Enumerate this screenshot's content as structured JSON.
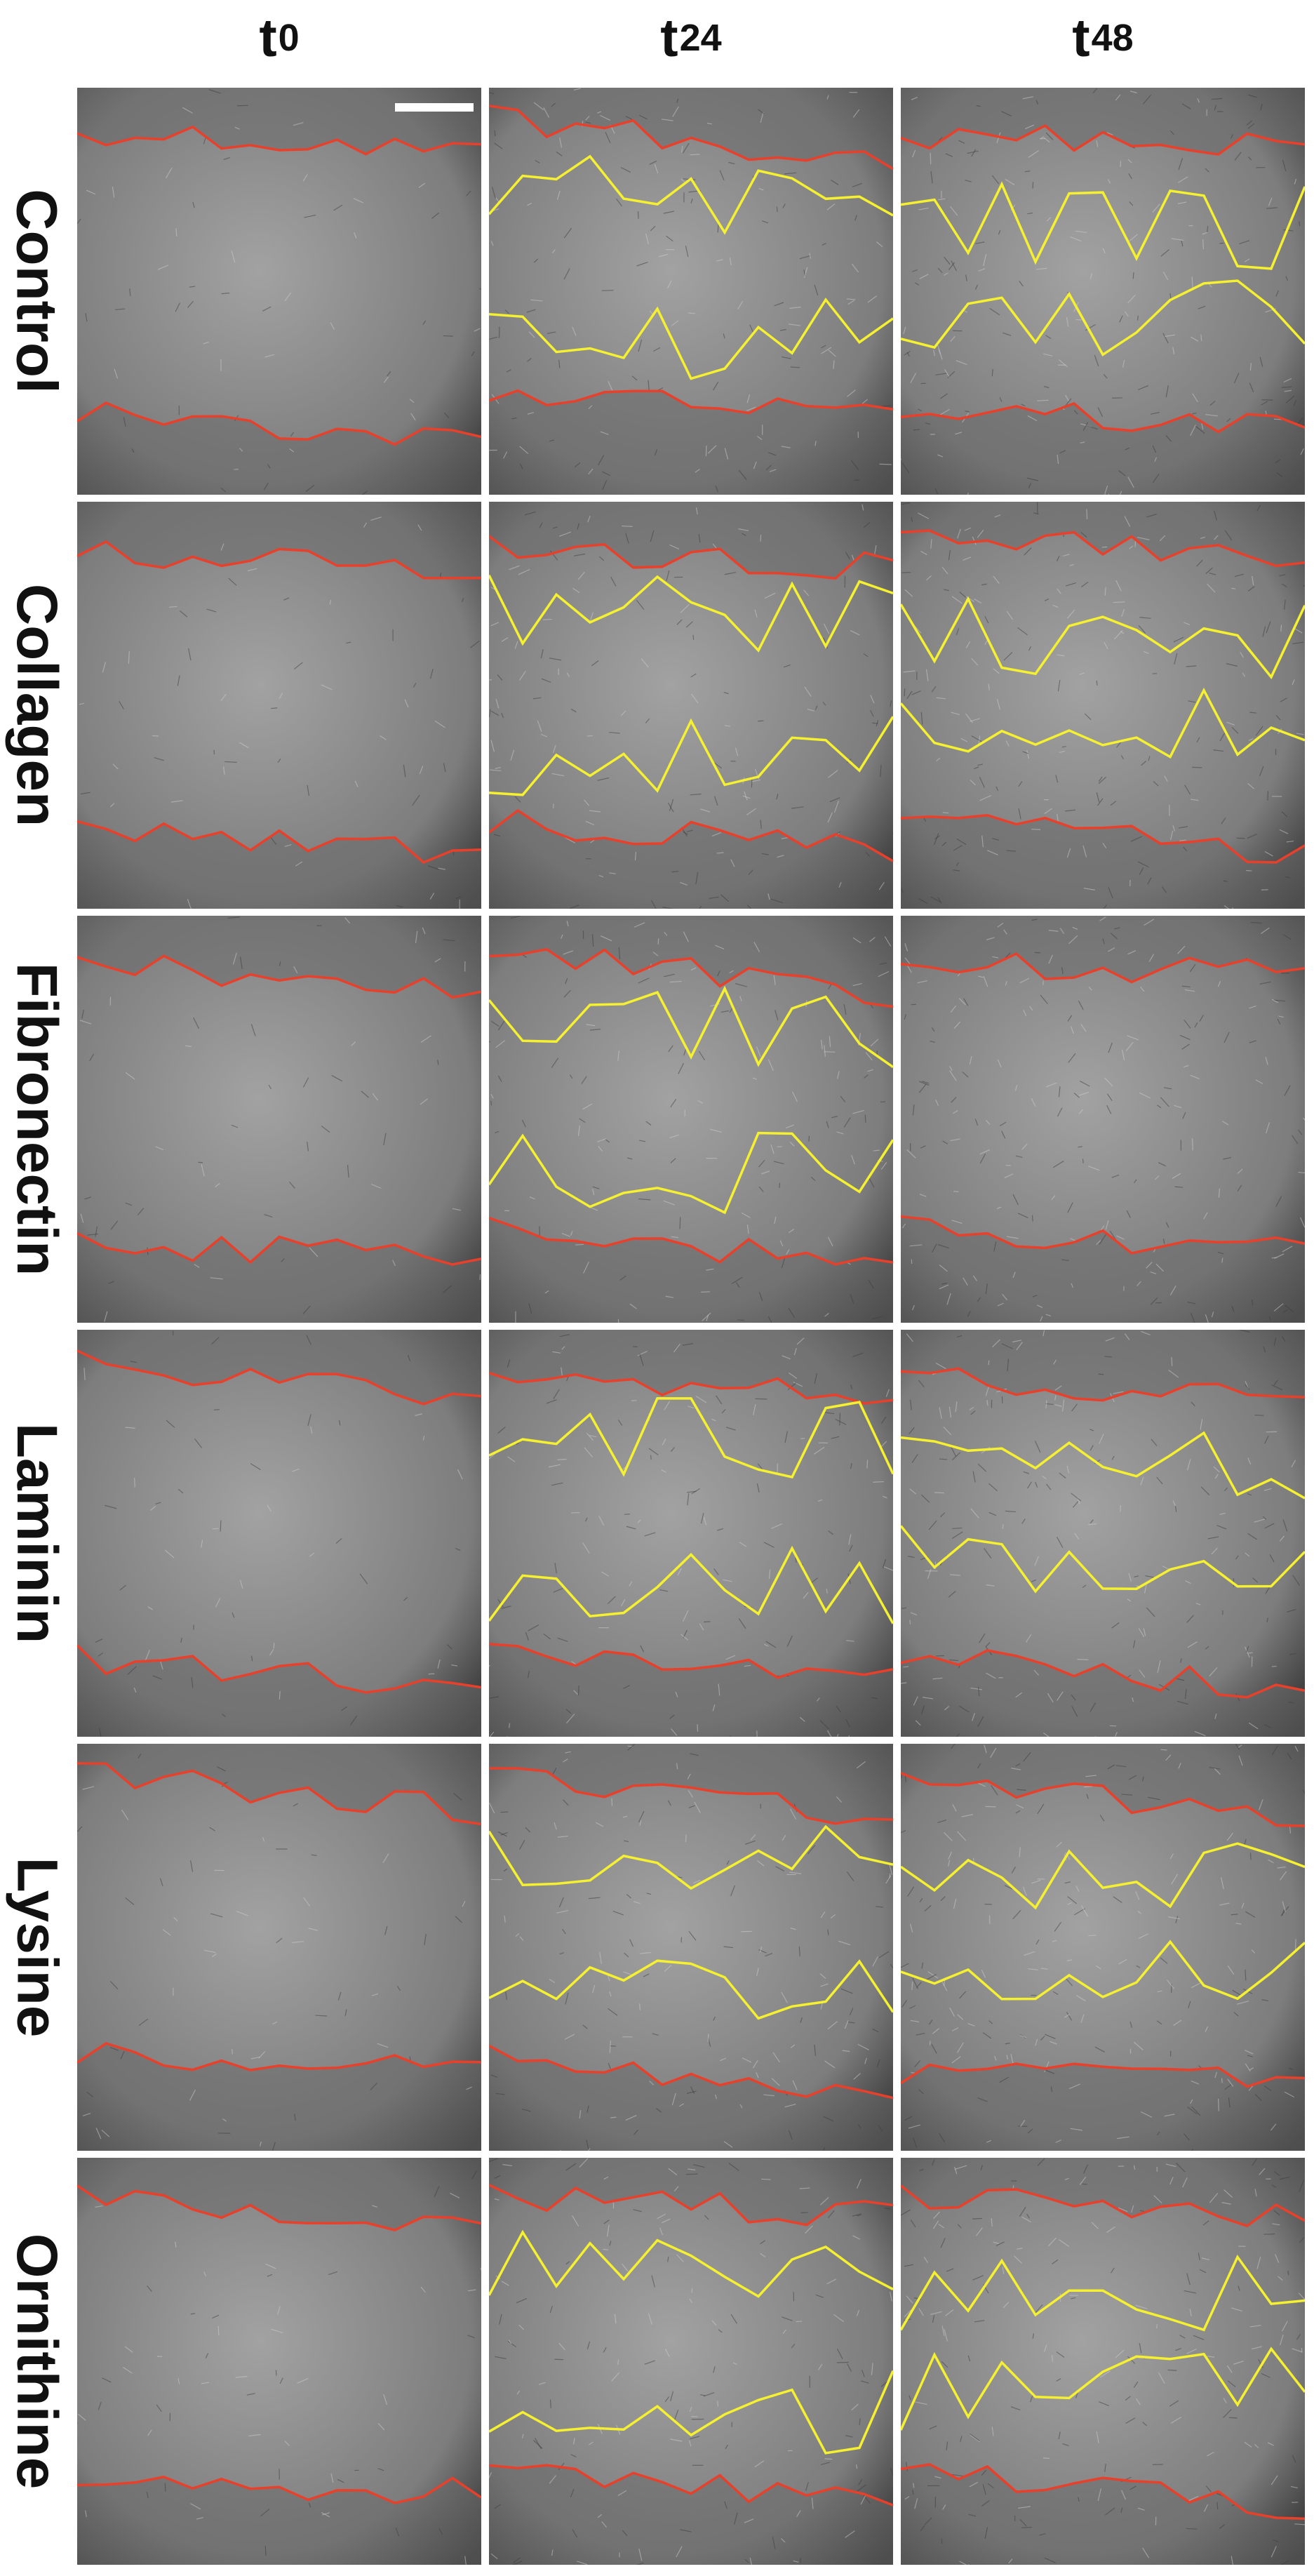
{
  "columns": [
    {
      "base": "t",
      "sub": "0"
    },
    {
      "base": "t",
      "sub": "24"
    },
    {
      "base": "t",
      "sub": "48"
    }
  ],
  "rows": [
    "Control",
    "Collagen",
    "Fibronectin",
    "Laminin",
    "Lysine",
    "Ornithine"
  ],
  "colors": {
    "initial_edge": "#e8402a",
    "migration_front": "#f5f030",
    "gap": "#8f8f8f",
    "monolayer": "#6a6a6a",
    "scale_bar": "#ffffff"
  }
}
